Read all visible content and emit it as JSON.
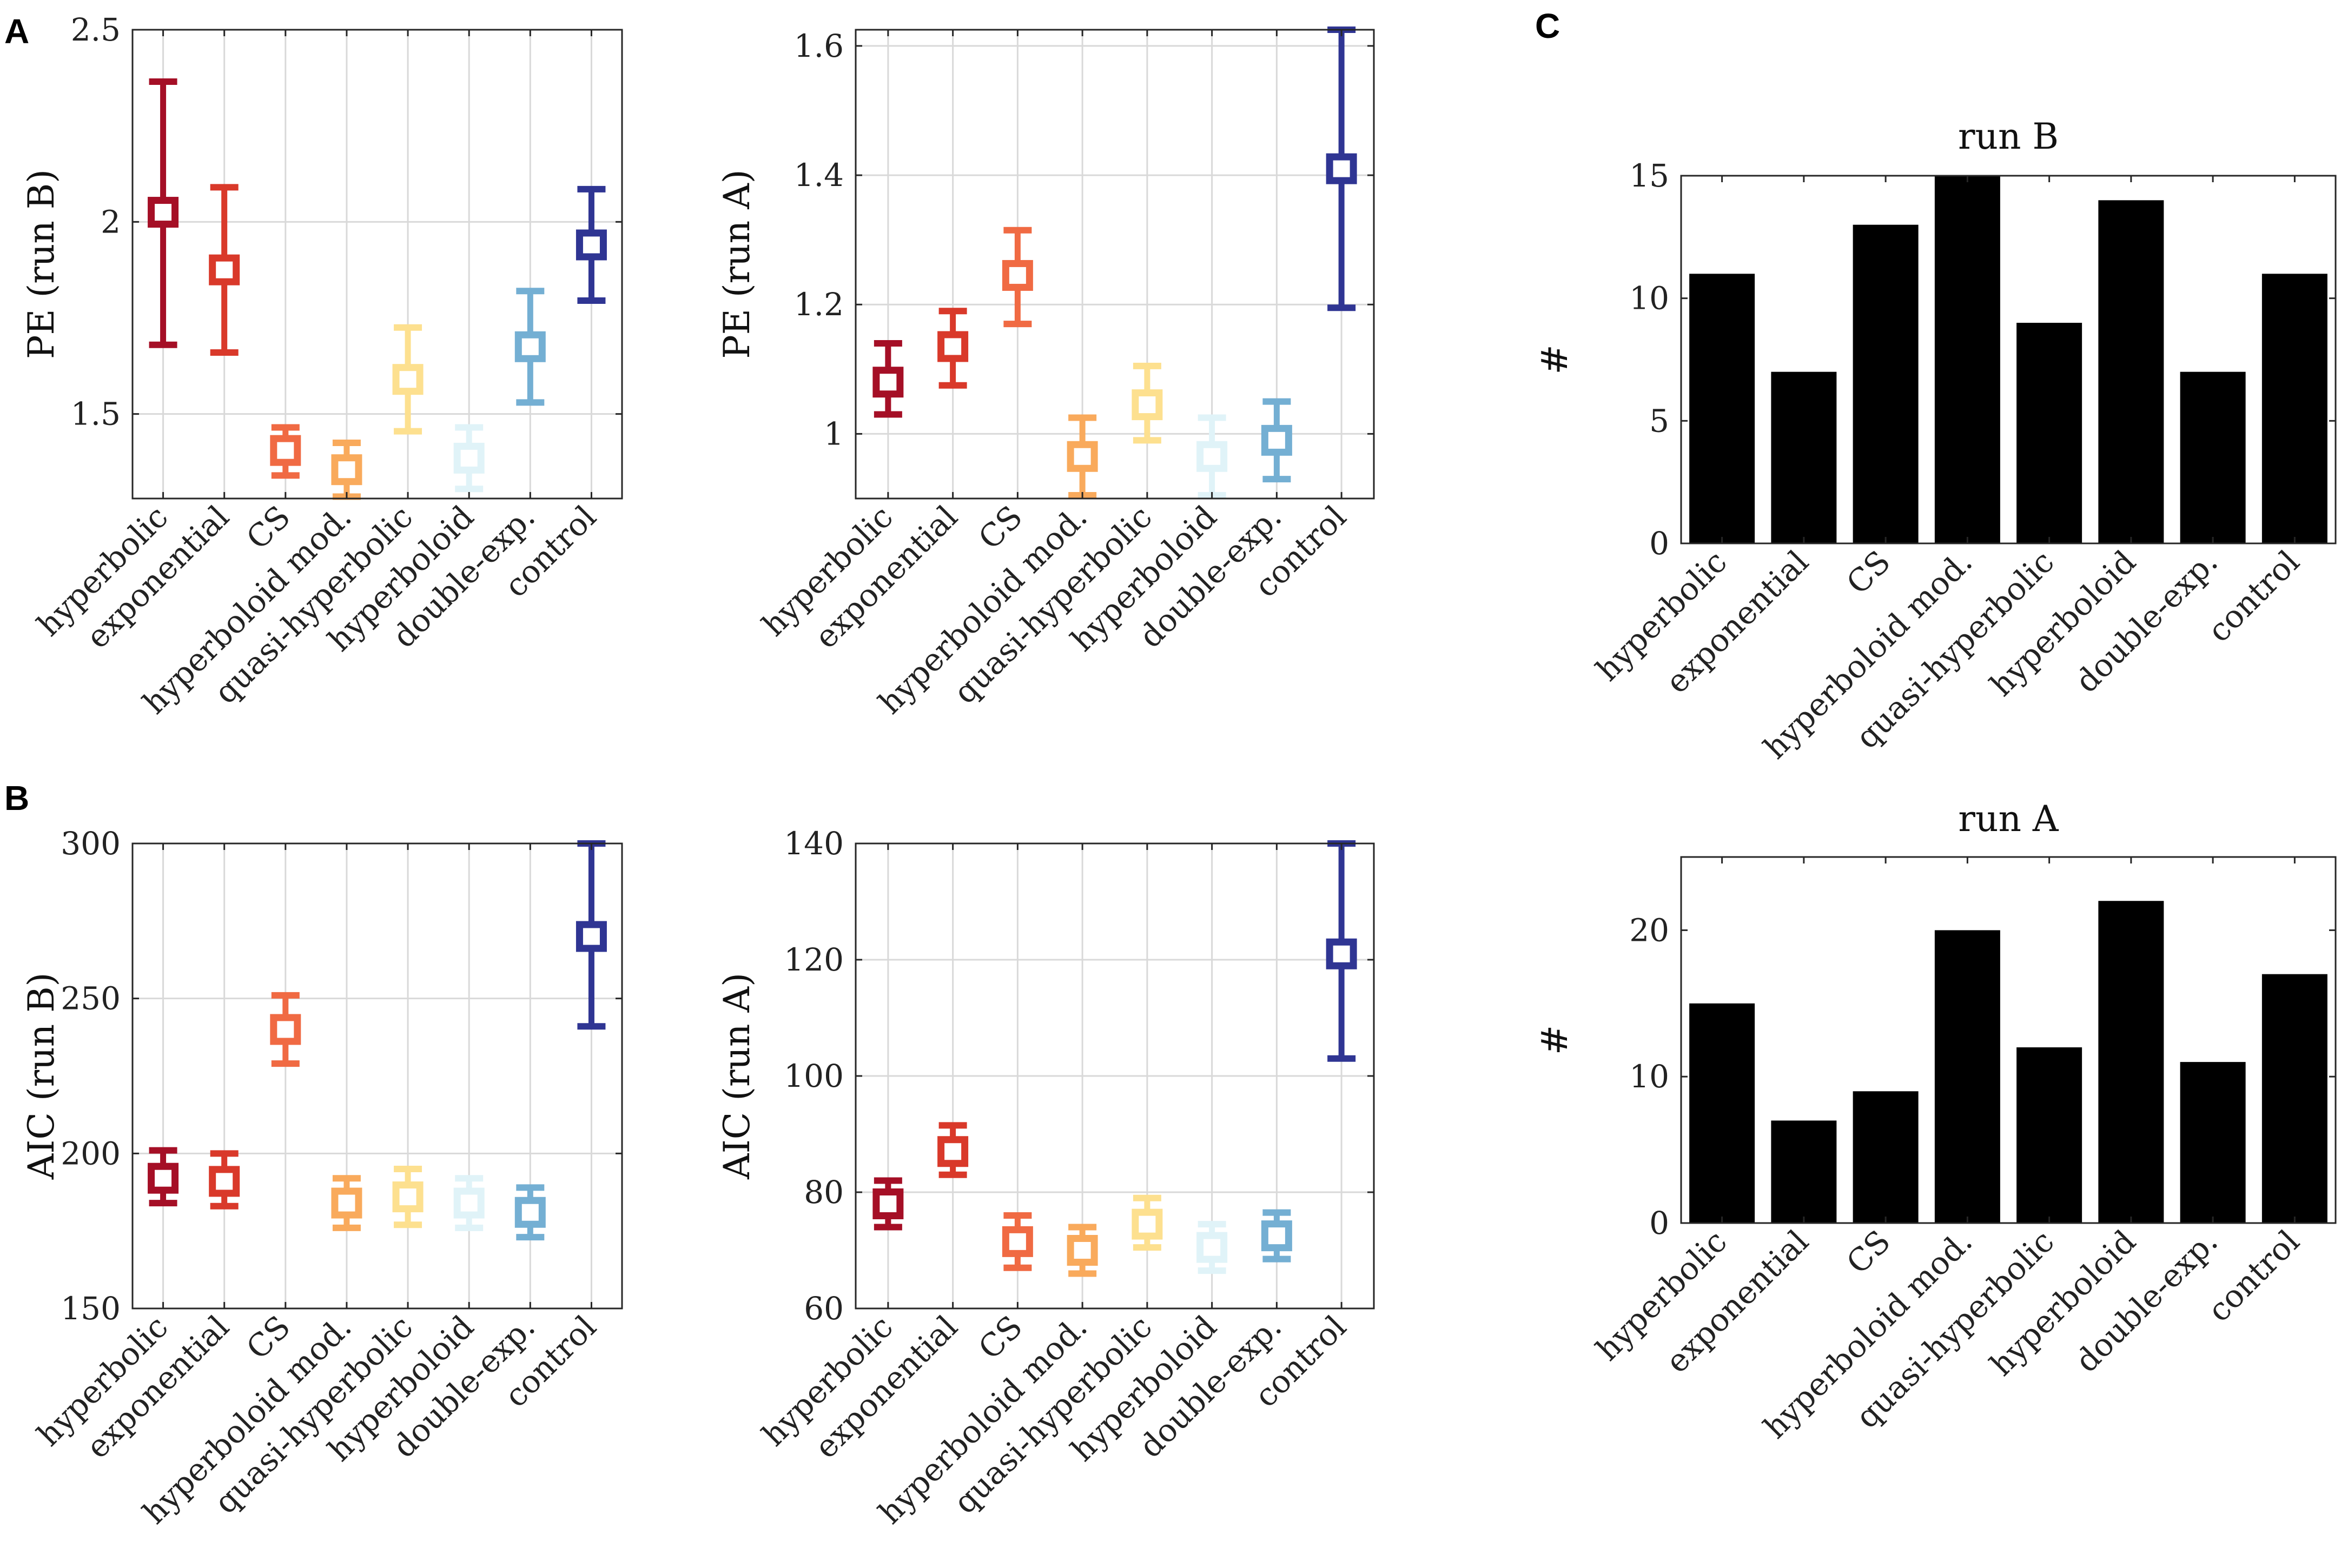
{
  "panels": {
    "A": "A",
    "B": "B",
    "C": "C"
  },
  "chart_data": [
    {
      "id": "pe_run_b",
      "type": "errorbar",
      "panel": "A",
      "title": "",
      "xlabel": "",
      "ylabel": "PE (run B)",
      "categories": [
        "hyperbolic",
        "exponential",
        "CS",
        "hyperboloid mod.",
        "quasi-hyperbolic",
        "hyperboloid",
        "double-exp.",
        "control"
      ],
      "colors": [
        "#a50f26",
        "#d9392a",
        "#f06a43",
        "#f9aa5c",
        "#fde08f",
        "#e0f3f8",
        "#74afd3",
        "#2f3593"
      ],
      "values": [
        2.025,
        1.875,
        1.405,
        1.355,
        1.59,
        1.385,
        1.675,
        1.94
      ],
      "lower": [
        1.68,
        1.66,
        1.34,
        1.285,
        1.455,
        1.305,
        1.53,
        1.795
      ],
      "upper": [
        2.365,
        2.09,
        1.465,
        1.425,
        1.725,
        1.465,
        1.82,
        2.085
      ],
      "ylim": [
        1.28,
        2.5
      ],
      "yticks": [
        1.5,
        2,
        2.5
      ],
      "ytick_labels": [
        "1.5",
        "2",
        "2.5"
      ],
      "grid": true
    },
    {
      "id": "pe_run_a",
      "type": "errorbar",
      "panel": "A",
      "title": "",
      "xlabel": "",
      "ylabel": "PE (run A)",
      "categories": [
        "hyperbolic",
        "exponential",
        "CS",
        "hyperboloid mod.",
        "quasi-hyperbolic",
        "hyperboloid",
        "double-exp.",
        "control"
      ],
      "colors": [
        "#a50f26",
        "#d9392a",
        "#f06a43",
        "#f9aa5c",
        "#fde08f",
        "#e0f3f8",
        "#74afd3",
        "#2f3593"
      ],
      "values": [
        1.08,
        1.135,
        1.245,
        0.965,
        1.045,
        0.965,
        0.99,
        1.41
      ],
      "lower": [
        1.03,
        1.075,
        1.17,
        0.905,
        0.99,
        0.905,
        0.93,
        1.195
      ],
      "upper": [
        1.14,
        1.19,
        1.315,
        1.025,
        1.105,
        1.025,
        1.05,
        1.625
      ],
      "ylim": [
        0.9,
        1.625
      ],
      "yticks": [
        1,
        1.2,
        1.4,
        1.6
      ],
      "ytick_labels": [
        "1",
        "1.2",
        "1.4",
        "1.6"
      ],
      "grid": true
    },
    {
      "id": "aic_run_b",
      "type": "errorbar",
      "panel": "B",
      "title": "",
      "xlabel": "",
      "ylabel": "AIC (run B)",
      "categories": [
        "hyperbolic",
        "exponential",
        "CS",
        "hyperboloid mod.",
        "quasi-hyperbolic",
        "hyperboloid",
        "double-exp.",
        "control"
      ],
      "colors": [
        "#a50f26",
        "#d9392a",
        "#f06a43",
        "#f9aa5c",
        "#fde08f",
        "#e0f3f8",
        "#74afd3",
        "#2f3593"
      ],
      "values": [
        192,
        191,
        240,
        184,
        186,
        184,
        181,
        270
      ],
      "lower": [
        184,
        183,
        229,
        176,
        177,
        176,
        173,
        241
      ],
      "upper": [
        201,
        200,
        251,
        192,
        195,
        192,
        189,
        300
      ],
      "ylim": [
        150,
        300
      ],
      "yticks": [
        150,
        200,
        250,
        300
      ],
      "ytick_labels": [
        "150",
        "200",
        "250",
        "300"
      ],
      "grid": true
    },
    {
      "id": "aic_run_a",
      "type": "errorbar",
      "panel": "B",
      "title": "",
      "xlabel": "",
      "ylabel": "AIC (run A)",
      "categories": [
        "hyperbolic",
        "exponential",
        "CS",
        "hyperboloid mod.",
        "quasi-hyperbolic",
        "hyperboloid",
        "double-exp.",
        "control"
      ],
      "colors": [
        "#a50f26",
        "#d9392a",
        "#f06a43",
        "#f9aa5c",
        "#fde08f",
        "#e0f3f8",
        "#74afd3",
        "#2f3593"
      ],
      "values": [
        78,
        87,
        71.5,
        70,
        74.5,
        70.5,
        72.5,
        121
      ],
      "lower": [
        74,
        83,
        67,
        66,
        70.5,
        66.5,
        68.5,
        103
      ],
      "upper": [
        82,
        91.5,
        76,
        74,
        79,
        74.5,
        76.5,
        140
      ],
      "ylim": [
        60,
        140
      ],
      "yticks": [
        60,
        80,
        100,
        120,
        140
      ],
      "ytick_labels": [
        "60",
        "80",
        "100",
        "120",
        "140"
      ],
      "grid": true
    },
    {
      "id": "count_run_b",
      "type": "bar",
      "panel": "C",
      "title": "run B",
      "xlabel": "",
      "ylabel": "#",
      "categories": [
        "hyperbolic",
        "exponential",
        "CS",
        "hyperboloid mod.",
        "quasi-hyperbolic",
        "hyperboloid",
        "double-exp.",
        "control"
      ],
      "values": [
        11,
        7,
        13,
        15,
        9,
        14,
        7,
        11
      ],
      "bar_color": "#000000",
      "ylim": [
        0,
        15
      ],
      "yticks": [
        0,
        5,
        10,
        15
      ],
      "ytick_labels": [
        "0",
        "5",
        "10",
        "15"
      ],
      "grid": false
    },
    {
      "id": "count_run_a",
      "type": "bar",
      "panel": "C",
      "title": "run A",
      "xlabel": "",
      "ylabel": "#",
      "categories": [
        "hyperbolic",
        "exponential",
        "CS",
        "hyperboloid mod.",
        "quasi-hyperbolic",
        "hyperboloid",
        "double-exp.",
        "control"
      ],
      "values": [
        15,
        7,
        9,
        20,
        12,
        22,
        11,
        17
      ],
      "bar_color": "#000000",
      "ylim": [
        0,
        25
      ],
      "yticks": [
        0,
        10,
        20
      ],
      "ytick_labels": [
        "0",
        "10",
        "20"
      ],
      "grid": false
    }
  ]
}
